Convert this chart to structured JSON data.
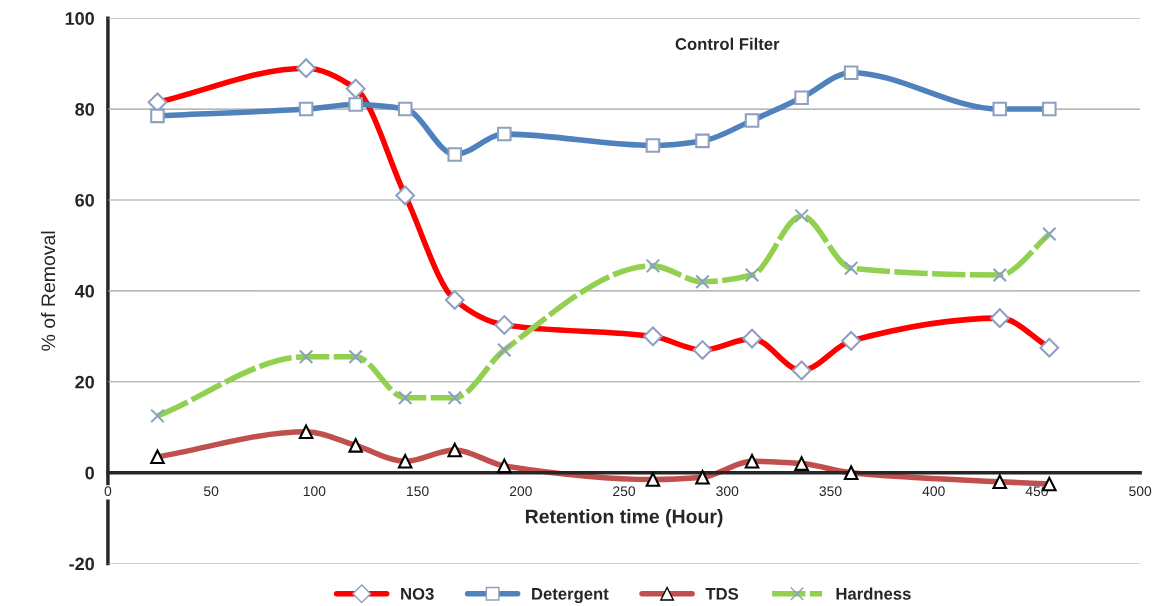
{
  "chart_data": {
    "type": "line",
    "title": "Control Filter",
    "xlabel": "Retention time (Hour)",
    "ylabel": "% of Removal",
    "x": [
      24,
      96,
      120,
      144,
      168,
      192,
      264,
      288,
      312,
      336,
      360,
      432,
      456
    ],
    "xlim": [
      0,
      500
    ],
    "xticks": [
      0,
      50,
      100,
      150,
      200,
      250,
      300,
      350,
      400,
      450,
      500
    ],
    "ylim": [
      -20,
      100
    ],
    "yticks": [
      -20,
      0,
      20,
      40,
      60,
      80,
      100
    ],
    "grid": "y",
    "legend": "bottom",
    "series": [
      {
        "name": "NO3",
        "color": "#ff0000",
        "marker": "diamond",
        "values": [
          81.5,
          89,
          84.5,
          61,
          38,
          32.5,
          30,
          27,
          29.5,
          22.5,
          29,
          34,
          27.5
        ]
      },
      {
        "name": "Detergent",
        "color": "#4f81bd",
        "marker": "square",
        "values": [
          78.5,
          80,
          81,
          80,
          70,
          74.5,
          72,
          73,
          77.5,
          82.5,
          88,
          80,
          80
        ]
      },
      {
        "name": "TDS",
        "color": "#c0504d",
        "marker": "triangle",
        "values": [
          3.5,
          9,
          6,
          2.5,
          5,
          1.5,
          -1.5,
          -1,
          2.5,
          2,
          0,
          -2,
          -2.5
        ]
      },
      {
        "name": "Hardness",
        "color": "#92d050",
        "marker": "cross",
        "line_style": "dashed",
        "values": [
          12.5,
          25.5,
          25.5,
          16.5,
          16.5,
          27,
          45.5,
          42,
          43.5,
          56.5,
          45,
          43.5,
          52.5
        ]
      }
    ]
  }
}
